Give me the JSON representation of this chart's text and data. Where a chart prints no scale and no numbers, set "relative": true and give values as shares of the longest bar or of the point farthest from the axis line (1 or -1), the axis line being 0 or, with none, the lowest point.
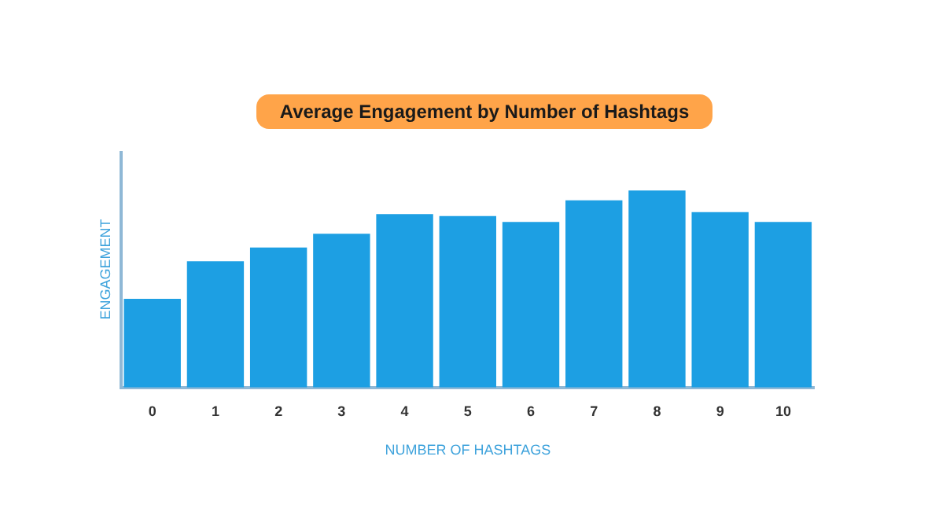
{
  "chart_data": {
    "type": "bar",
    "title": "Average Engagement by Number of Hashtags",
    "xlabel": "NUMBER OF HASHTAGS",
    "ylabel": "ENGAGEMENT",
    "categories": [
      "0",
      "1",
      "2",
      "3",
      "4",
      "5",
      "6",
      "7",
      "8",
      "9",
      "10"
    ],
    "values": [
      0.45,
      0.64,
      0.71,
      0.78,
      0.88,
      0.87,
      0.84,
      0.95,
      1,
      0.89,
      0.84
    ],
    "color": "#1d9fe3",
    "relative": true,
    "legend": false
  }
}
